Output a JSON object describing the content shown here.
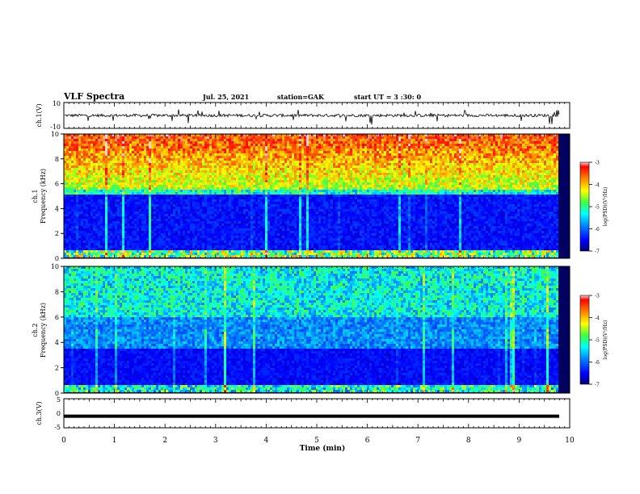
{
  "header": {
    "title": "VLF Spectra",
    "date": "Jul. 25, 2021",
    "station": "station=GAK",
    "start": "start UT =  3 :30: 0"
  },
  "chart_data": [
    {
      "type": "line",
      "id": "ch1-waveform",
      "ylabel": "ch.1(V)",
      "ylim": [
        -10,
        10
      ],
      "yticks": [
        "10",
        "-10"
      ],
      "description_series": "voltage trace near 0 with small spikes"
    },
    {
      "type": "heatmap",
      "id": "ch1-spectrogram",
      "ylabel": "ch.1\nFrequency (kHz)",
      "ylim": [
        0,
        10
      ],
      "yticks": [
        "0",
        "2",
        "4",
        "6",
        "8",
        "10"
      ],
      "colorbar": {
        "label": "log(PSD)(V²/Hz)",
        "range": [
          -7,
          -3
        ],
        "ticks": [
          "-3",
          "-4",
          "-5",
          "-6",
          "-7"
        ]
      }
    },
    {
      "type": "heatmap",
      "id": "ch2-spectrogram",
      "ylabel": "ch.2\nFrequency (kHz)",
      "ylim": [
        0,
        10
      ],
      "yticks": [
        "0",
        "2",
        "4",
        "6",
        "8",
        "10"
      ],
      "colorbar": {
        "label": "log(PSD)(V²/Hz)",
        "range": [
          -7,
          -3
        ],
        "ticks": [
          "-3",
          "-4",
          "-5",
          "-6",
          "-7"
        ]
      }
    },
    {
      "type": "line",
      "id": "ch3-waveform",
      "ylabel": "ch.3(V)",
      "ylim": [
        -5,
        5
      ],
      "yticks": [
        "5",
        "0",
        "-5"
      ],
      "value": -1
    }
  ],
  "xaxis": {
    "label": "Time (min)",
    "range": [
      0,
      10
    ],
    "ticks": [
      "0",
      "1",
      "2",
      "3",
      "4",
      "5",
      "6",
      "7",
      "8",
      "9",
      "10"
    ]
  },
  "colors": {
    "jet": [
      "#000080",
      "#0000ff",
      "#0080ff",
      "#00ffff",
      "#80ff80",
      "#ffff00",
      "#ff8000",
      "#ff0000",
      "#800000"
    ]
  }
}
